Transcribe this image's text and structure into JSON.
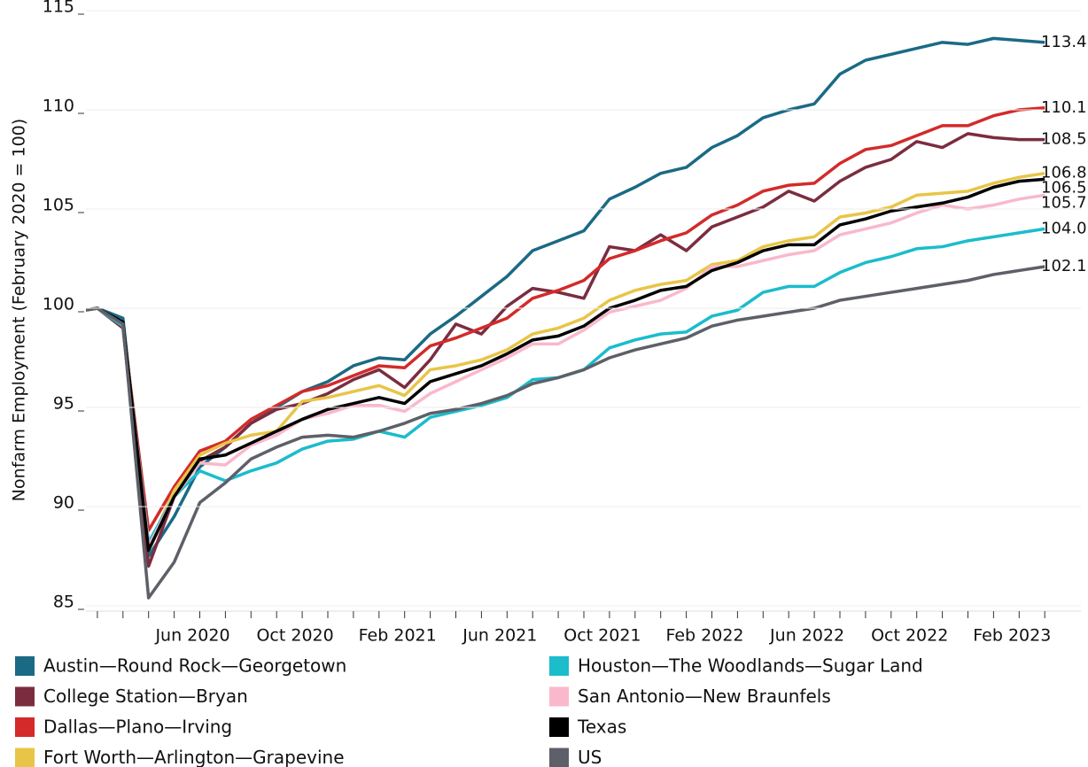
{
  "chart_data": {
    "type": "line",
    "y_label": "Nonfarm Employment (February 2020 = 100)",
    "categories": [
      null,
      null,
      null,
      null,
      null,
      "Jun 2020",
      null,
      null,
      null,
      "Oct 2020",
      null,
      null,
      null,
      "Feb 2021",
      null,
      null,
      null,
      "Jun 2021",
      null,
      null,
      null,
      "Oct 2021",
      null,
      null,
      null,
      "Feb 2022",
      null,
      null,
      null,
      "Jun 2022",
      null,
      null,
      null,
      "Oct 2022",
      null,
      null,
      null,
      "Feb 2023",
      null
    ],
    "ylim": [
      85,
      115
    ],
    "yticks": [
      85,
      90,
      95,
      100,
      105,
      110,
      115
    ],
    "grid": true,
    "series": [
      {
        "name": "Austin—Round Rock—Georgetown",
        "color": "#1b6a85",
        "values": [
          99.8,
          100,
          99.5,
          87.5,
          89.5,
          92,
          93,
          94.2,
          95,
          95.8,
          96.3,
          97.1,
          97.5,
          97.4,
          98.7,
          99.6,
          100.6,
          101.6,
          102.9,
          103.4,
          103.9,
          105.5,
          106.1,
          106.8,
          107.1,
          108.1,
          108.7,
          109.6,
          110.0,
          110.3,
          111.8,
          112.5,
          112.8,
          113.1,
          113.4,
          113.3,
          113.6,
          113.5,
          113.4
        ]
      },
      {
        "name": "College Station—Bryan",
        "color": "#7b2d3f",
        "values": [
          99.8,
          100,
          99.0,
          87.0,
          90.5,
          92.3,
          93.0,
          94.2,
          94.9,
          95.2,
          95.7,
          96.4,
          96.9,
          96.0,
          97.4,
          99.2,
          98.7,
          100.1,
          101.0,
          100.8,
          100.5,
          103.1,
          102.9,
          103.7,
          102.9,
          104.1,
          104.6,
          105.1,
          105.9,
          105.4,
          106.4,
          107.1,
          107.5,
          108.4,
          108.1,
          108.8,
          108.6,
          108.5,
          108.5
        ]
      },
      {
        "name": "Dallas—Plano—Irving",
        "color": "#d42a2a",
        "values": [
          99.8,
          100,
          99.1,
          88.8,
          91,
          92.8,
          93.3,
          94.4,
          95.1,
          95.8,
          96.1,
          96.6,
          97.1,
          97.0,
          98.1,
          98.5,
          99.0,
          99.5,
          100.5,
          100.9,
          101.4,
          102.5,
          102.9,
          103.4,
          103.8,
          104.7,
          105.2,
          105.9,
          106.2,
          106.3,
          107.3,
          108.0,
          108.2,
          108.7,
          109.2,
          109.2,
          109.7,
          110.0,
          110.1
        ]
      },
      {
        "name": "Fort Worth—Arlington—Grapevine",
        "color": "#e8c547",
        "values": [
          99.8,
          100,
          99.2,
          88,
          90.8,
          92.6,
          93.2,
          93.6,
          93.8,
          95.3,
          95.5,
          95.8,
          96.1,
          95.6,
          96.9,
          97.1,
          97.4,
          97.9,
          98.7,
          99.0,
          99.5,
          100.4,
          100.9,
          101.2,
          101.4,
          102.2,
          102.4,
          103.1,
          103.4,
          103.6,
          104.6,
          104.8,
          105.1,
          105.7,
          105.8,
          105.9,
          106.3,
          106.6,
          106.8
        ]
      },
      {
        "name": "Houston—The Woodlands—Sugar Land",
        "color": "#1bbccc",
        "values": [
          99.8,
          100,
          99.1,
          88.2,
          90.5,
          91.8,
          91.3,
          91.8,
          92.2,
          92.9,
          93.3,
          93.4,
          93.8,
          93.5,
          94.5,
          94.8,
          95.1,
          95.5,
          96.4,
          96.5,
          96.9,
          98.0,
          98.4,
          98.7,
          98.8,
          99.6,
          99.9,
          100.8,
          101.1,
          101.1,
          101.8,
          102.3,
          102.6,
          103.0,
          103.1,
          103.4,
          103.6,
          103.8,
          104.0
        ],
        "value_labels": {
          "38": "104.0"
        }
      },
      {
        "name": "San Antonio—New Braunfels",
        "color": "#f9b8cc",
        "values": [
          99.8,
          100,
          99.2,
          88.0,
          90.5,
          92.2,
          92.1,
          93.1,
          93.6,
          94.4,
          94.7,
          95.1,
          95.1,
          94.8,
          95.7,
          96.3,
          96.9,
          97.5,
          98.2,
          98.2,
          98.9,
          99.8,
          100.1,
          100.4,
          101.0,
          102.1,
          102.1,
          102.4,
          102.7,
          102.9,
          103.7,
          104.0,
          104.3,
          104.8,
          105.2,
          105.0,
          105.2,
          105.5,
          105.7
        ]
      },
      {
        "name": "Texas",
        "color": "#000000",
        "values": [
          99.8,
          100,
          99.3,
          87.8,
          90.5,
          92.4,
          92.6,
          93.2,
          93.8,
          94.4,
          94.9,
          95.2,
          95.5,
          95.2,
          96.3,
          96.7,
          97.1,
          97.7,
          98.4,
          98.6,
          99.1,
          100.0,
          100.4,
          100.9,
          101.1,
          101.9,
          102.3,
          102.9,
          103.2,
          103.2,
          104.2,
          104.5,
          104.9,
          105.1,
          105.3,
          105.6,
          106.1,
          106.4,
          106.5
        ]
      },
      {
        "name": "US",
        "color": "#5d6068",
        "values": [
          99.8,
          100,
          99.2,
          85.4,
          87.2,
          90.2,
          91.2,
          92.4,
          93.0,
          93.5,
          93.6,
          93.5,
          93.8,
          94.2,
          94.7,
          94.9,
          95.2,
          95.6,
          96.2,
          96.5,
          96.9,
          97.5,
          97.9,
          98.2,
          98.5,
          99.1,
          99.4,
          99.6,
          99.8,
          100.0,
          100.4,
          100.6,
          100.8,
          101.0,
          101.2,
          101.4,
          101.7,
          101.9,
          102.1
        ]
      }
    ]
  }
}
